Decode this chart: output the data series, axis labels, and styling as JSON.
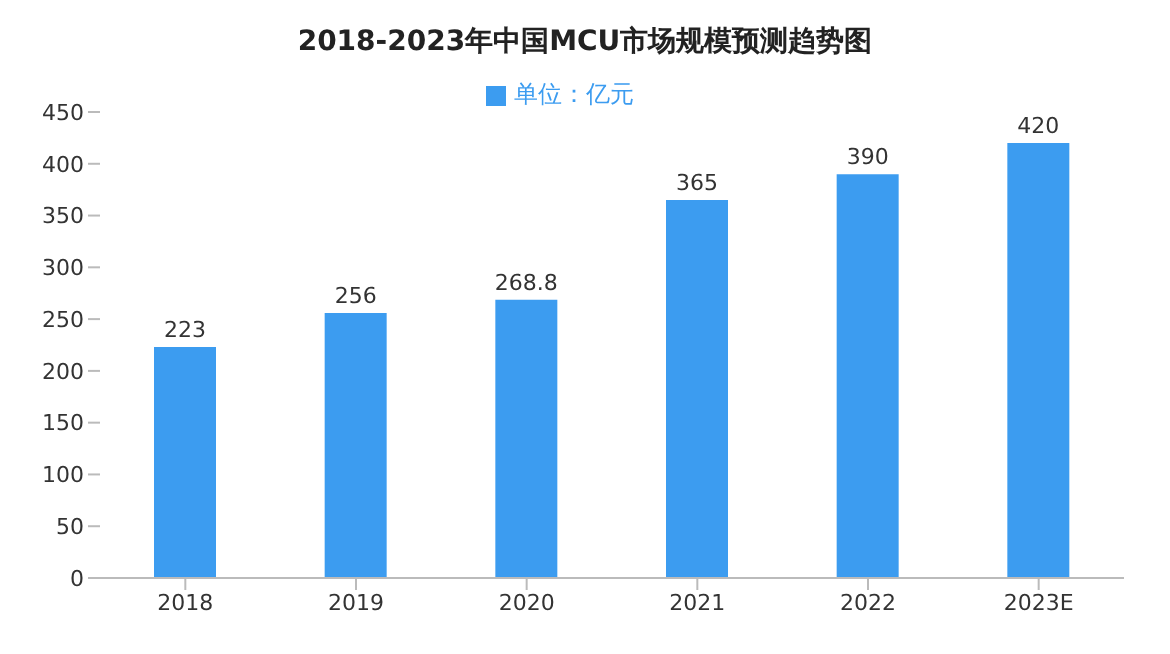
{
  "chart_data": {
    "type": "bar",
    "title": "2018-2023年中国MCU市场规模预测趋势图",
    "categories": [
      "2018",
      "2019",
      "2020",
      "2021",
      "2022",
      "2023E"
    ],
    "series": [
      {
        "name": "单位：亿元",
        "color": "#3c9cf0",
        "values": [
          223,
          256,
          268.8,
          365,
          390,
          420
        ]
      }
    ],
    "ylim": [
      0,
      450
    ],
    "yticks": [
      0,
      50,
      100,
      150,
      200,
      250,
      300,
      350,
      400,
      450
    ],
    "grid": false,
    "legend": "top",
    "data_labels": true
  }
}
